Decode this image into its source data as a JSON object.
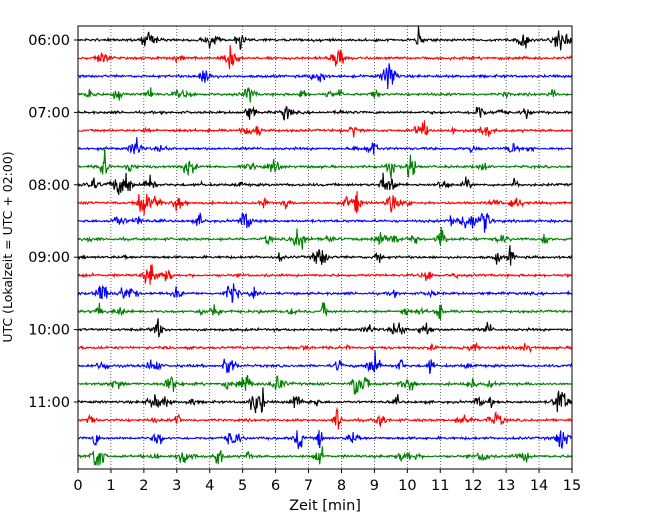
{
  "chart_data": {
    "type": "line",
    "title": "",
    "xlabel": "Zeit  [min]",
    "ylabel": "UTC (Lokalzeit = UTC + 02:00)",
    "xlim": [
      0,
      15
    ],
    "x_ticks": [
      "0",
      "1",
      "2",
      "3",
      "4",
      "5",
      "6",
      "7",
      "8",
      "9",
      "10",
      "11",
      "12",
      "13",
      "14",
      "15"
    ],
    "y_tick_labels": [
      "06:00",
      "07:00",
      "08:00",
      "09:00",
      "10:00",
      "11:00"
    ],
    "grid": "vertical dotted lines at each minute",
    "traces_per_hour": 4,
    "minutes_per_trace": 15,
    "trace_start_times": [
      "06:00",
      "06:15",
      "06:30",
      "06:45",
      "07:00",
      "07:15",
      "07:30",
      "07:45",
      "08:00",
      "08:15",
      "08:30",
      "08:45",
      "09:00",
      "09:15",
      "09:30",
      "09:45",
      "10:00",
      "10:15",
      "10:30",
      "10:45",
      "11:00",
      "11:15",
      "11:30",
      "11:45"
    ],
    "color_cycle": [
      "#000000",
      "#ff0000",
      "#0000ff",
      "#008000"
    ],
    "series_description": "Helicorder seismogram: 24 consecutive 15-minute traces with noise and transient spikes"
  }
}
